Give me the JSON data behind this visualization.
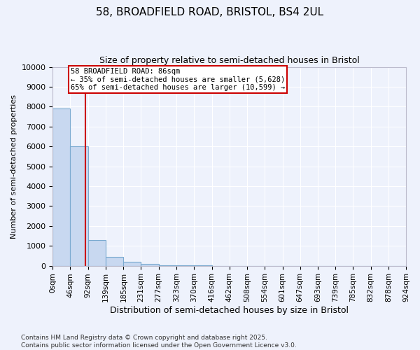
{
  "title_line1": "58, BROADFIELD ROAD, BRISTOL, BS4 2UL",
  "title_line2": "Size of property relative to semi-detached houses in Bristol",
  "xlabel": "Distribution of semi-detached houses by size in Bristol",
  "ylabel": "Number of semi-detached properties",
  "bin_labels": [
    "0sqm",
    "46sqm",
    "92sqm",
    "139sqm",
    "185sqm",
    "231sqm",
    "277sqm",
    "323sqm",
    "370sqm",
    "416sqm",
    "462sqm",
    "508sqm",
    "554sqm",
    "601sqm",
    "647sqm",
    "693sqm",
    "739sqm",
    "785sqm",
    "832sqm",
    "878sqm",
    "924sqm"
  ],
  "bin_edges": [
    0,
    46,
    92,
    139,
    185,
    231,
    277,
    323,
    370,
    416,
    462,
    508,
    554,
    601,
    647,
    693,
    739,
    785,
    832,
    878,
    924
  ],
  "bar_heights": [
    7900,
    6000,
    1300,
    450,
    200,
    80,
    30,
    10,
    5,
    2,
    1,
    0,
    0,
    0,
    0,
    0,
    0,
    0,
    0,
    0
  ],
  "bar_color": "#c8d8f0",
  "bar_edge_color": "#7aaad0",
  "property_size": 86,
  "red_line_color": "#cc0000",
  "annotation_text_line1": "58 BROADFIELD ROAD: 86sqm",
  "annotation_text_line2": "← 35% of semi-detached houses are smaller (5,628)",
  "annotation_text_line3": "65% of semi-detached houses are larger (10,599) →",
  "annotation_box_color": "#cc0000",
  "ylim": [
    0,
    10000
  ],
  "yticks": [
    0,
    1000,
    2000,
    3000,
    4000,
    5000,
    6000,
    7000,
    8000,
    9000,
    10000
  ],
  "footer_line1": "Contains HM Land Registry data © Crown copyright and database right 2025.",
  "footer_line2": "Contains public sector information licensed under the Open Government Licence v3.0.",
  "bg_color": "#eef2fc",
  "plot_bg_color": "#eef2fc",
  "grid_color": "#ffffff"
}
